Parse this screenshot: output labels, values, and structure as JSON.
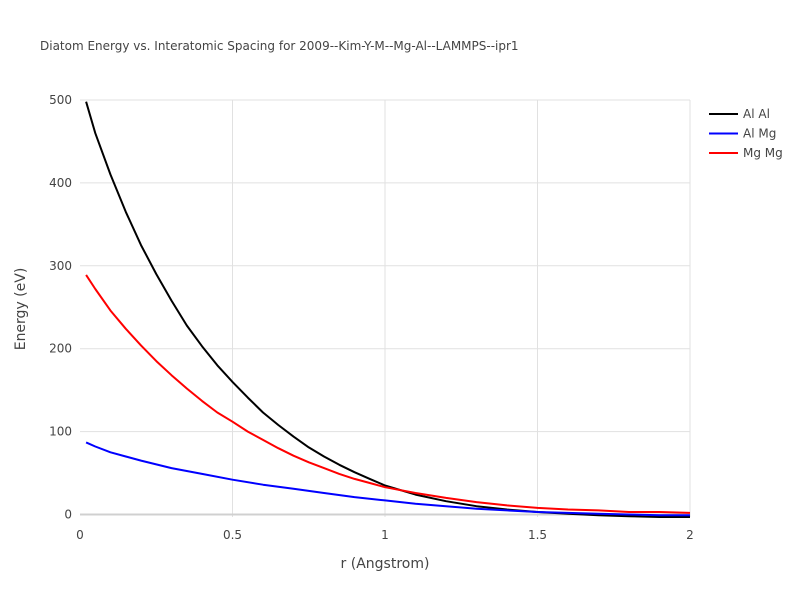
{
  "chart_data": {
    "type": "line",
    "title": "Diatom Energy vs. Interatomic Spacing for 2009--Kim-Y-M--Mg-Al--LAMMPS--ipr1",
    "xlabel": "r (Angstrom)",
    "ylabel": "Energy (eV)",
    "xlim": [
      0,
      2
    ],
    "ylim": [
      -3,
      500
    ],
    "x_ticks": [
      0,
      0.5,
      1,
      1.5,
      2
    ],
    "x_tick_labels": [
      "0",
      "0.5",
      "1",
      "1.5",
      "2"
    ],
    "y_ticks": [
      0,
      100,
      200,
      300,
      400,
      500
    ],
    "y_tick_labels": [
      "0",
      "100",
      "200",
      "300",
      "400",
      "500"
    ],
    "grid": true,
    "legend_position": "top-right",
    "series": [
      {
        "name": "Al Al",
        "color": "#000000",
        "x": [
          0.02,
          0.05,
          0.1,
          0.15,
          0.2,
          0.25,
          0.3,
          0.35,
          0.4,
          0.45,
          0.5,
          0.55,
          0.6,
          0.65,
          0.7,
          0.75,
          0.8,
          0.85,
          0.9,
          0.95,
          1.0,
          1.1,
          1.2,
          1.3,
          1.4,
          1.5,
          1.6,
          1.7,
          1.8,
          1.9,
          2.0
        ],
        "y": [
          498,
          460,
          410,
          365,
          325,
          290,
          258,
          228,
          203,
          180,
          160,
          141,
          123,
          108,
          94,
          81,
          70,
          60,
          51,
          43,
          35,
          24,
          16,
          10,
          6,
          3,
          1,
          -1,
          -2,
          -3,
          -3
        ]
      },
      {
        "name": "Al Mg",
        "color": "#0000ff",
        "x": [
          0.02,
          0.05,
          0.1,
          0.15,
          0.2,
          0.3,
          0.4,
          0.5,
          0.6,
          0.7,
          0.8,
          0.9,
          1.0,
          1.1,
          1.2,
          1.3,
          1.4,
          1.5,
          1.6,
          1.7,
          1.8,
          1.9,
          2.0
        ],
        "y": [
          87,
          82,
          75,
          70,
          65,
          56,
          49,
          42,
          36,
          31,
          26,
          21,
          17,
          13,
          10,
          7,
          5,
          3,
          2,
          1,
          0,
          -1,
          -1
        ]
      },
      {
        "name": "Mg Mg",
        "color": "#ff0000",
        "x": [
          0.02,
          0.05,
          0.1,
          0.15,
          0.2,
          0.25,
          0.3,
          0.35,
          0.4,
          0.45,
          0.5,
          0.55,
          0.6,
          0.65,
          0.7,
          0.75,
          0.8,
          0.85,
          0.9,
          0.95,
          1.0,
          1.1,
          1.2,
          1.3,
          1.4,
          1.5,
          1.6,
          1.7,
          1.8,
          1.9,
          2.0
        ],
        "y": [
          289,
          272,
          246,
          224,
          204,
          185,
          168,
          152,
          137,
          123,
          112,
          100,
          90,
          80,
          71,
          63,
          56,
          49,
          43,
          38,
          33,
          26,
          20,
          15,
          11,
          8,
          6,
          5,
          3,
          3,
          2
        ]
      }
    ]
  }
}
